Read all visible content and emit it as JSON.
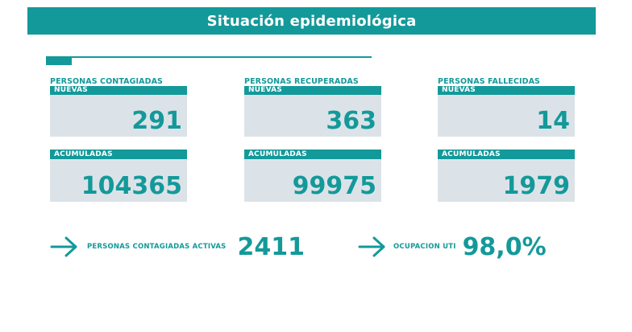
{
  "header": {
    "title": "Situación epidemiológica"
  },
  "colors": {
    "accent": "#14999a",
    "card_background": "#dce3e8",
    "header_text": "#ffffff"
  },
  "columns": [
    {
      "title": "PERSONAS CONTAGIADAS",
      "new_label": "NUEVAS",
      "new_value": "291",
      "total_label": "ACUMULADAS",
      "total_value": "104365"
    },
    {
      "title": "PERSONAS RECUPERADAS",
      "new_label": "NUEVAS",
      "new_value": "363",
      "total_label": "ACUMULADAS",
      "total_value": "99975"
    },
    {
      "title": "PERSONAS FALLECIDAS",
      "new_label": "NUEVAS",
      "new_value": "14",
      "total_label": "ACUMULADAS",
      "total_value": "1979"
    }
  ],
  "summary": {
    "active_label": "PERSONAS CONTAGIADAS ACTIVAS",
    "active_value": "2411",
    "icu_label": "OCUPACION UTI",
    "icu_value": "98,0%",
    "arrow_icon": "arrow-right-icon"
  }
}
